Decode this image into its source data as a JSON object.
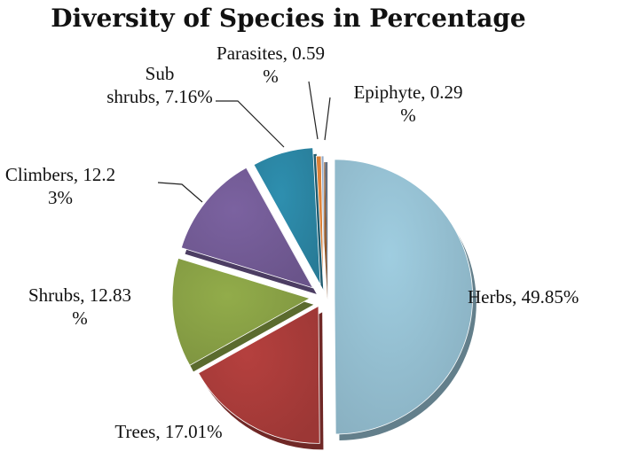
{
  "chart_data": {
    "type": "pie",
    "title": "Diversity of Species in Percentage",
    "exploded": true,
    "slices": [
      {
        "category": "Herbs",
        "value": 49.85,
        "color": "#9FCDE0",
        "label_lines": [
          "Herbs, 49.85%"
        ]
      },
      {
        "category": "Trees",
        "value": 17.01,
        "color": "#B5403E",
        "label_lines": [
          "Trees, 17.01%"
        ]
      },
      {
        "category": "Shrubs",
        "value": 12.83,
        "color": "#92AC4A",
        "label_lines": [
          "Shrubs, 12.83",
          "%"
        ]
      },
      {
        "category": "Climbers",
        "value": 12.23,
        "color": "#7B62A0",
        "label_lines": [
          "Climbers, 12.2",
          "3%"
        ]
      },
      {
        "category": "Sub shrubs",
        "value": 7.16,
        "color": "#2E8FAF",
        "label_lines": [
          "Sub",
          "shrubs, 7.16%"
        ]
      },
      {
        "category": "Parasites",
        "value": 0.59,
        "color": "#E8883A",
        "label_lines": [
          "Parasites, 0.59",
          "%"
        ]
      },
      {
        "category": "Epiphyte",
        "value": 0.29,
        "color": "#9BB3D4",
        "label_lines": [
          "Epiphyte, 0.29",
          "%"
        ]
      }
    ],
    "legend": "none",
    "data_labels": "outside with leader lines"
  }
}
